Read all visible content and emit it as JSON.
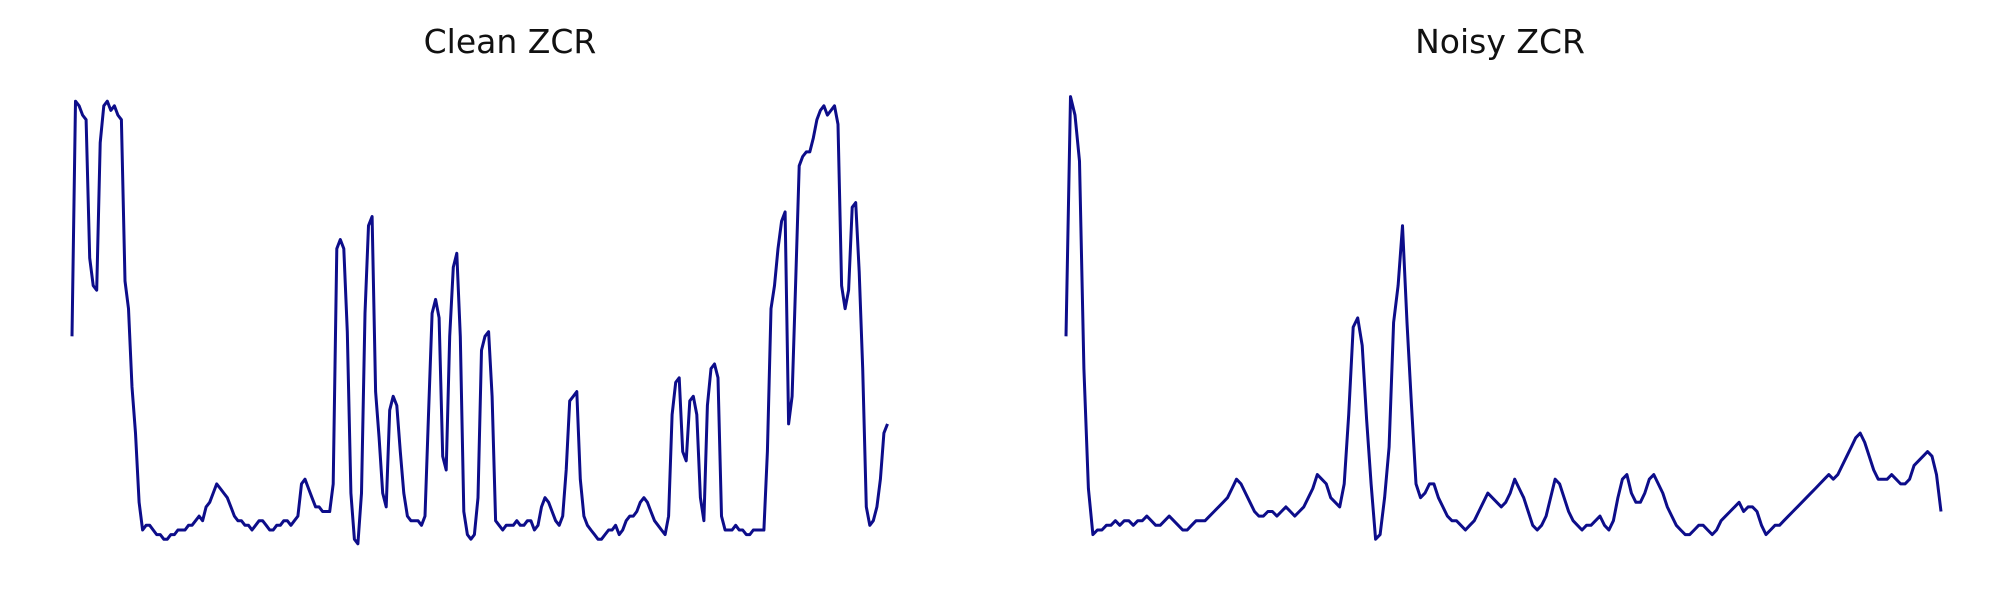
{
  "colors": {
    "line": "#0d0d8a",
    "background": "#ffffff",
    "text": "#111111"
  },
  "chart_data": [
    {
      "type": "line",
      "title": "Clean ZCR",
      "xlabel": "",
      "ylabel": "",
      "grid": false,
      "axes_visible": false,
      "y": [
        0.47,
        0.98,
        0.97,
        0.95,
        0.94,
        0.64,
        0.58,
        0.57,
        0.89,
        0.97,
        0.98,
        0.96,
        0.97,
        0.95,
        0.94,
        0.59,
        0.53,
        0.36,
        0.26,
        0.11,
        0.05,
        0.06,
        0.06,
        0.05,
        0.04,
        0.04,
        0.03,
        0.03,
        0.04,
        0.04,
        0.05,
        0.05,
        0.05,
        0.06,
        0.06,
        0.07,
        0.08,
        0.07,
        0.1,
        0.11,
        0.13,
        0.15,
        0.14,
        0.13,
        0.12,
        0.1,
        0.08,
        0.07,
        0.07,
        0.06,
        0.06,
        0.05,
        0.06,
        0.07,
        0.07,
        0.06,
        0.05,
        0.05,
        0.06,
        0.06,
        0.07,
        0.07,
        0.06,
        0.07,
        0.08,
        0.15,
        0.16,
        0.14,
        0.12,
        0.1,
        0.1,
        0.09,
        0.09,
        0.09,
        0.15,
        0.66,
        0.68,
        0.66,
        0.48,
        0.13,
        0.03,
        0.02,
        0.13,
        0.52,
        0.71,
        0.73,
        0.35,
        0.25,
        0.13,
        0.1,
        0.31,
        0.34,
        0.32,
        0.22,
        0.13,
        0.08,
        0.07,
        0.07,
        0.07,
        0.06,
        0.08,
        0.3,
        0.52,
        0.55,
        0.51,
        0.21,
        0.18,
        0.47,
        0.62,
        0.65,
        0.47,
        0.09,
        0.04,
        0.03,
        0.04,
        0.12,
        0.44,
        0.47,
        0.48,
        0.34,
        0.07,
        0.06,
        0.05,
        0.06,
        0.06,
        0.06,
        0.07,
        0.06,
        0.06,
        0.07,
        0.07,
        0.05,
        0.06,
        0.1,
        0.12,
        0.11,
        0.09,
        0.07,
        0.06,
        0.08,
        0.18,
        0.33,
        0.34,
        0.35,
        0.16,
        0.08,
        0.06,
        0.05,
        0.04,
        0.03,
        0.03,
        0.04,
        0.05,
        0.05,
        0.06,
        0.04,
        0.05,
        0.07,
        0.08,
        0.08,
        0.09,
        0.11,
        0.12,
        0.11,
        0.09,
        0.07,
        0.06,
        0.05,
        0.04,
        0.08,
        0.3,
        0.37,
        0.38,
        0.22,
        0.2,
        0.33,
        0.34,
        0.3,
        0.12,
        0.07,
        0.32,
        0.4,
        0.41,
        0.38,
        0.08,
        0.05,
        0.05,
        0.05,
        0.06,
        0.05,
        0.05,
        0.04,
        0.04,
        0.05,
        0.05,
        0.05,
        0.05,
        0.22,
        0.53,
        0.58,
        0.66,
        0.72,
        0.74,
        0.28,
        0.34,
        0.59,
        0.84,
        0.86,
        0.87,
        0.87,
        0.9,
        0.94,
        0.96,
        0.97,
        0.95,
        0.96,
        0.97,
        0.93,
        0.58,
        0.53,
        0.57,
        0.75,
        0.76,
        0.61,
        0.4,
        0.1,
        0.06,
        0.07,
        0.1,
        0.16,
        0.26,
        0.28
      ],
      "ylim": [
        0,
        1
      ],
      "xlim_points": 250
    },
    {
      "type": "line",
      "title": "Noisy ZCR",
      "xlabel": "",
      "ylabel": "",
      "grid": false,
      "axes_visible": false,
      "y": [
        0.47,
        0.99,
        0.95,
        0.85,
        0.4,
        0.14,
        0.04,
        0.05,
        0.05,
        0.06,
        0.06,
        0.07,
        0.06,
        0.07,
        0.07,
        0.06,
        0.07,
        0.07,
        0.08,
        0.07,
        0.06,
        0.06,
        0.07,
        0.08,
        0.07,
        0.06,
        0.05,
        0.05,
        0.06,
        0.07,
        0.07,
        0.07,
        0.08,
        0.09,
        0.1,
        0.11,
        0.12,
        0.14,
        0.16,
        0.15,
        0.13,
        0.11,
        0.09,
        0.08,
        0.08,
        0.09,
        0.09,
        0.08,
        0.09,
        0.1,
        0.09,
        0.08,
        0.09,
        0.1,
        0.12,
        0.14,
        0.17,
        0.16,
        0.15,
        0.12,
        0.11,
        0.1,
        0.15,
        0.3,
        0.49,
        0.51,
        0.45,
        0.29,
        0.15,
        0.03,
        0.04,
        0.12,
        0.23,
        0.5,
        0.58,
        0.71,
        0.5,
        0.32,
        0.15,
        0.12,
        0.13,
        0.15,
        0.15,
        0.12,
        0.1,
        0.08,
        0.07,
        0.07,
        0.06,
        0.05,
        0.06,
        0.07,
        0.09,
        0.11,
        0.13,
        0.12,
        0.11,
        0.1,
        0.11,
        0.13,
        0.16,
        0.14,
        0.12,
        0.09,
        0.06,
        0.05,
        0.06,
        0.08,
        0.12,
        0.16,
        0.15,
        0.12,
        0.09,
        0.07,
        0.06,
        0.05,
        0.06,
        0.06,
        0.07,
        0.08,
        0.06,
        0.05,
        0.07,
        0.12,
        0.16,
        0.17,
        0.13,
        0.11,
        0.11,
        0.13,
        0.16,
        0.17,
        0.15,
        0.13,
        0.1,
        0.08,
        0.06,
        0.05,
        0.04,
        0.04,
        0.05,
        0.06,
        0.06,
        0.05,
        0.04,
        0.05,
        0.07,
        0.08,
        0.09,
        0.1,
        0.11,
        0.09,
        0.1,
        0.1,
        0.09,
        0.06,
        0.04,
        0.05,
        0.06,
        0.06,
        0.07,
        0.08,
        0.09,
        0.1,
        0.11,
        0.12,
        0.13,
        0.14,
        0.15,
        0.16,
        0.17,
        0.16,
        0.17,
        0.19,
        0.21,
        0.23,
        0.25,
        0.26,
        0.24,
        0.21,
        0.18,
        0.16,
        0.16,
        0.16,
        0.17,
        0.16,
        0.15,
        0.15,
        0.16,
        0.19,
        0.2,
        0.21,
        0.22,
        0.21,
        0.17,
        0.09
      ]
    }
  ]
}
